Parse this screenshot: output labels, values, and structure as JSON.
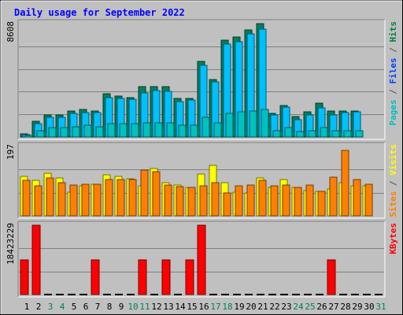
{
  "chart_data": {
    "type": "bar",
    "title": "Daily usage for September 2022",
    "days": [
      "1",
      "2",
      "3",
      "4",
      "5",
      "6",
      "7",
      "8",
      "9",
      "10",
      "11",
      "12",
      "13",
      "14",
      "15",
      "16",
      "17",
      "18",
      "19",
      "20",
      "21",
      "22",
      "23",
      "24",
      "25",
      "26",
      "27",
      "28",
      "29",
      "30",
      "31"
    ],
    "weekend_days": [
      "3",
      "4",
      "10",
      "11",
      "17",
      "18",
      "24",
      "25",
      "31"
    ],
    "panels": [
      {
        "id": "hits",
        "scale_max_label": "8608",
        "ymax": 8608,
        "legend": [
          {
            "text": "Pages",
            "color": "#00c0c0"
          },
          {
            "text": " / ",
            "color": "#555555"
          },
          {
            "text": "Files",
            "color": "#0040ff"
          },
          {
            "text": " / ",
            "color": "#555555"
          },
          {
            "text": "Hits",
            "color": "#008040"
          }
        ],
        "series": [
          {
            "name": "Hits",
            "color": "#00805c",
            "values": [
              250,
              1200,
              1700,
              1700,
              2000,
              2100,
              2000,
              3300,
              3100,
              3000,
              3850,
              3800,
              3800,
              2900,
              2900,
              5750,
              4350,
              7350,
              7600,
              8100,
              8608,
              1800,
              2400,
              1550,
              1900,
              2550,
              2000,
              2000,
              2000,
              0,
              0
            ]
          },
          {
            "name": "Files",
            "color": "#00c0ff",
            "values": [
              150,
              1000,
              1500,
              1500,
              1800,
              1850,
              1850,
              3000,
              2950,
              2850,
              3350,
              3500,
              3450,
              2700,
              2800,
              5450,
              4200,
              7050,
              7250,
              7850,
              8200,
              1700,
              2250,
              1300,
              1700,
              2200,
              1700,
              1850,
              1900,
              0,
              0
            ]
          },
          {
            "name": "Pages",
            "color": "#00c0c0",
            "values": [
              100,
              500,
              700,
              700,
              800,
              900,
              800,
              1000,
              1000,
              1000,
              1100,
              1100,
              1100,
              900,
              900,
              1500,
              1100,
              1800,
              1900,
              2000,
              2100,
              500,
              700,
              400,
              500,
              700,
              500,
              500,
              500,
              0,
              0
            ]
          }
        ]
      },
      {
        "id": "visits",
        "scale_max_label": "197",
        "ymax": 197,
        "legend": [
          {
            "text": "Sites",
            "color": "#ff8000"
          },
          {
            "text": " / ",
            "color": "#555555"
          },
          {
            "text": "Visits",
            "color": "#ffff00"
          }
        ],
        "series": [
          {
            "name": "Visits",
            "color": "#ffff00",
            "values": [
              112,
              100,
              120,
              108,
              68,
              85,
              89,
              117,
              113,
              105,
              85,
              134,
              95,
              88,
              80,
              118,
              143,
              95,
              67,
              64,
              107,
              80,
              103,
              80,
              71,
              69,
              75,
              95,
              84,
              86,
              0
            ]
          },
          {
            "name": "Sites",
            "color": "#ff8000",
            "values": [
              100,
              86,
              107,
              93,
              87,
              89,
              90,
              104,
              102,
              104,
              130,
              125,
              88,
              82,
              80,
              84,
              93,
              65,
              85,
              88,
              100,
              84,
              88,
              80,
              87,
              70,
              110,
              185,
              104,
              90,
              0
            ]
          }
        ]
      },
      {
        "id": "kbytes",
        "scale_max_label": "18423229",
        "ymax": 18423229,
        "legend": [
          {
            "text": "KBytes",
            "color": "#ff0000"
          }
        ],
        "series": [
          {
            "name": "KBytes",
            "color": "#ff0000",
            "values": [
              9200000,
              18423229,
              0,
              0,
              0,
              0,
              9200000,
              0,
              0,
              0,
              9200000,
              0,
              9200000,
              0,
              9200000,
              18423229,
              0,
              0,
              0,
              0,
              0,
              0,
              0,
              0,
              0,
              0,
              9200000,
              0,
              0,
              0,
              0
            ]
          }
        ]
      }
    ]
  }
}
